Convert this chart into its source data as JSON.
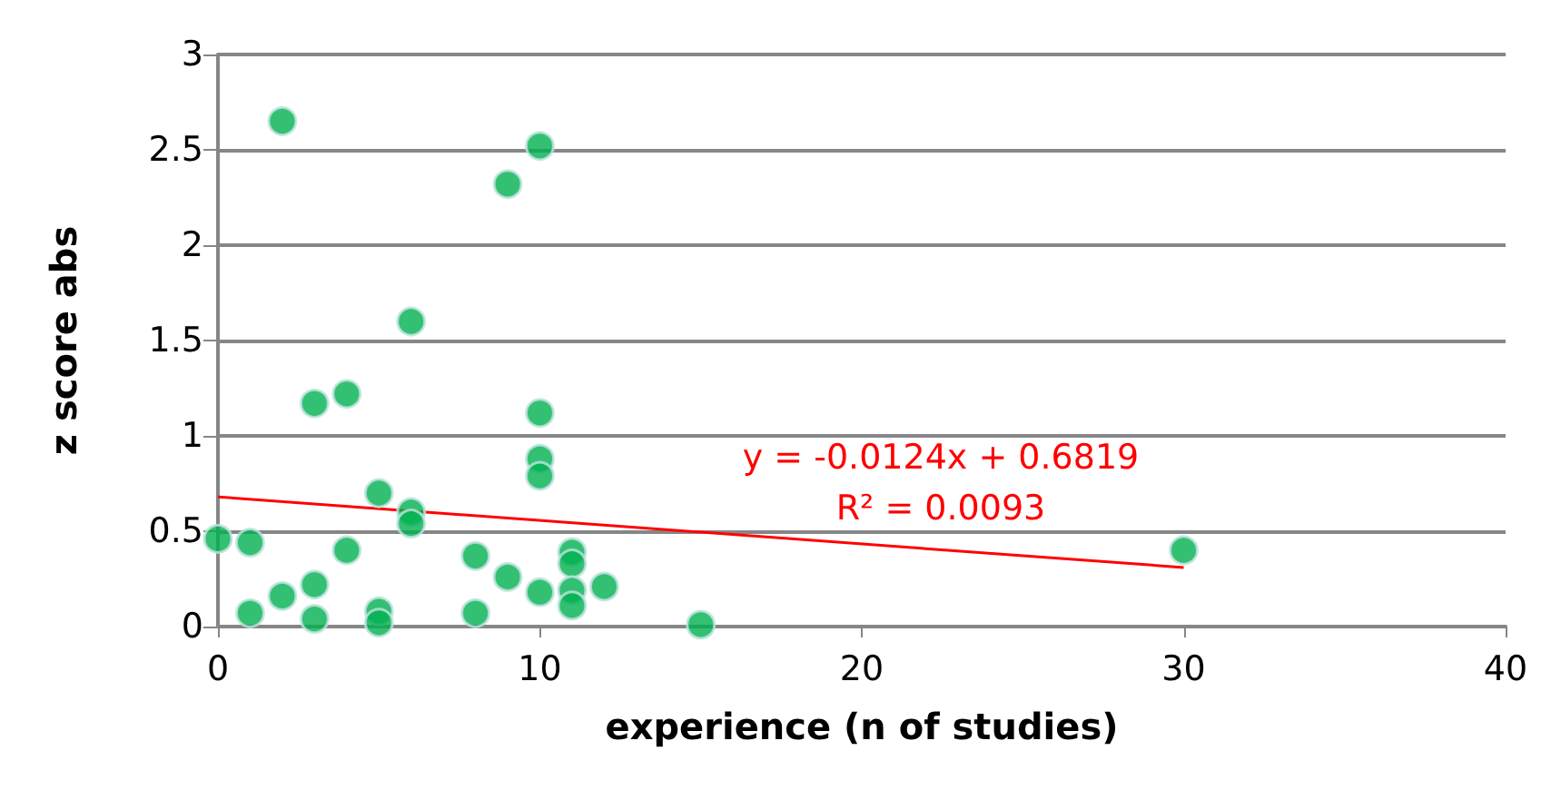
{
  "chart_data": {
    "type": "scatter",
    "xlabel": "experience (n of studies)",
    "ylabel": "z score abs",
    "xlim": [
      0,
      40
    ],
    "xticks": [
      0,
      10,
      20,
      30,
      40
    ],
    "ylim": [
      0,
      3
    ],
    "yticks": [
      0,
      0.5,
      1,
      1.5,
      2,
      2.5,
      3
    ],
    "grid": "y",
    "series": [
      {
        "marker": "circle",
        "color": "#00b050",
        "x": [
          0,
          1,
          1,
          2,
          2,
          3,
          3,
          3,
          4,
          4,
          5,
          5,
          5,
          6,
          6,
          6,
          8,
          8,
          9,
          9,
          10,
          10,
          10,
          10,
          10,
          11,
          11,
          11,
          11,
          12,
          15,
          30
        ],
        "values": [
          0.46,
          0.44,
          0.07,
          2.65,
          0.16,
          1.17,
          0.22,
          0.04,
          1.22,
          0.4,
          0.7,
          0.08,
          0.02,
          1.6,
          0.6,
          0.54,
          0.37,
          0.07,
          2.32,
          0.26,
          2.52,
          1.12,
          0.88,
          0.79,
          0.18,
          0.39,
          0.33,
          0.19,
          0.11,
          0.21,
          0.01,
          0.4
        ]
      },
      {
        "type": "line",
        "color": "#ff0000",
        "x": [
          0,
          30
        ],
        "values": [
          0.68,
          0.31
        ],
        "line_style": "solid"
      }
    ],
    "annotations": [
      "y = -0.0124x + 0.6819\nR² = 0.0093"
    ]
  }
}
